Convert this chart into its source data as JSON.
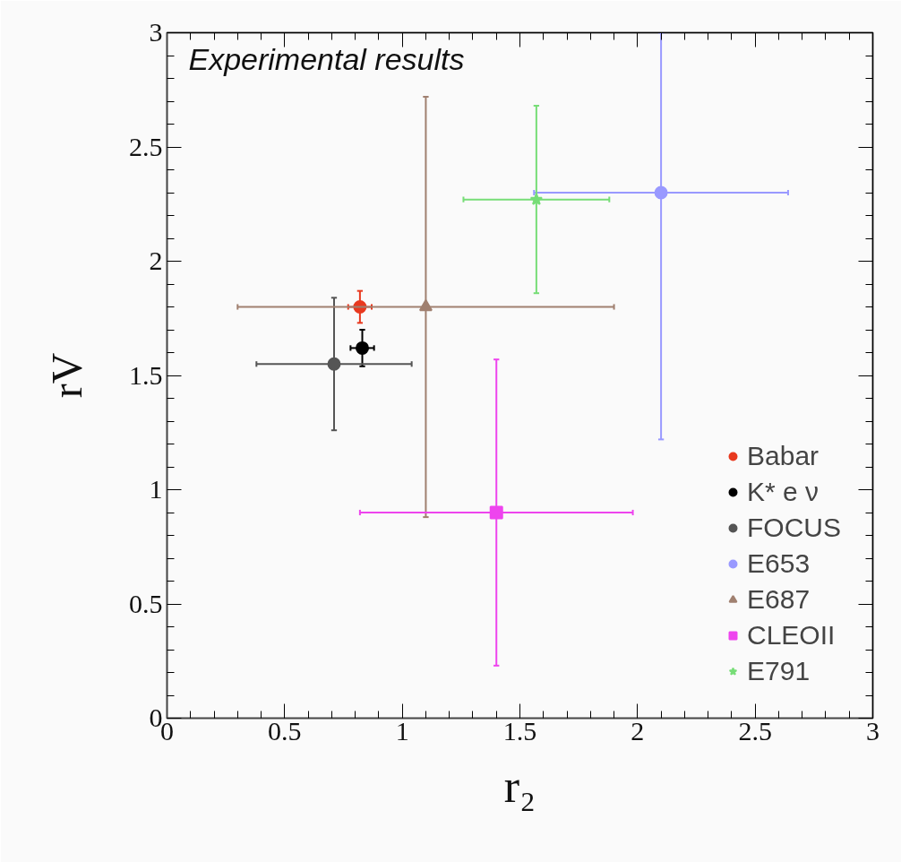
{
  "chart_data": {
    "type": "scatter",
    "title": "Experimental results",
    "xlabel": "r₂",
    "ylabel": "rV",
    "xlim": [
      0,
      3
    ],
    "ylim": [
      0,
      3
    ],
    "xticks": [
      0,
      0.5,
      1,
      1.5,
      2,
      2.5,
      3
    ],
    "yticks": [
      0,
      0.5,
      1,
      1.5,
      2,
      2.5,
      3
    ],
    "grid": false,
    "legend": "bottom right",
    "series": [
      {
        "name": "Babar",
        "color": "#e8391f",
        "marker": "circle",
        "x": [
          0.82
        ],
        "values": [
          1.8
        ],
        "errors": [
          0.07
        ],
        "xerrors": [
          0.05
        ]
      },
      {
        "name": "K* e ν",
        "color": "#000000",
        "marker": "circle",
        "x": [
          0.83
        ],
        "values": [
          1.62
        ],
        "errors": [
          0.08
        ],
        "xerrors": [
          0.05
        ]
      },
      {
        "name": "FOCUS",
        "color": "#555555",
        "marker": "circle",
        "x": [
          0.71
        ],
        "values": [
          1.55
        ],
        "errors": [
          0.29
        ],
        "xerrors": [
          0.33
        ]
      },
      {
        "name": "E653",
        "color": "#9999ff",
        "marker": "circle",
        "x": [
          2.1
        ],
        "values": [
          2.3
        ],
        "errors": [
          [
            1.22,
            3.0
          ]
        ],
        "xerrors": [
          0.54
        ]
      },
      {
        "name": "E687",
        "color": "#a08070",
        "marker": "triangle",
        "x": [
          1.1
        ],
        "values": [
          1.8
        ],
        "errors": [
          0.92
        ],
        "xerrors": [
          0.8
        ]
      },
      {
        "name": "CLEOII",
        "color": "#ee44ee",
        "marker": "square",
        "x": [
          1.4
        ],
        "values": [
          0.9
        ],
        "errors": [
          0.67
        ],
        "xerrors": [
          0.58
        ]
      },
      {
        "name": "E791",
        "color": "#77dd77",
        "marker": "star",
        "x": [
          1.57
        ],
        "values": [
          2.27
        ],
        "errors": [
          0.41
        ],
        "xerrors": [
          0.31
        ]
      }
    ]
  }
}
